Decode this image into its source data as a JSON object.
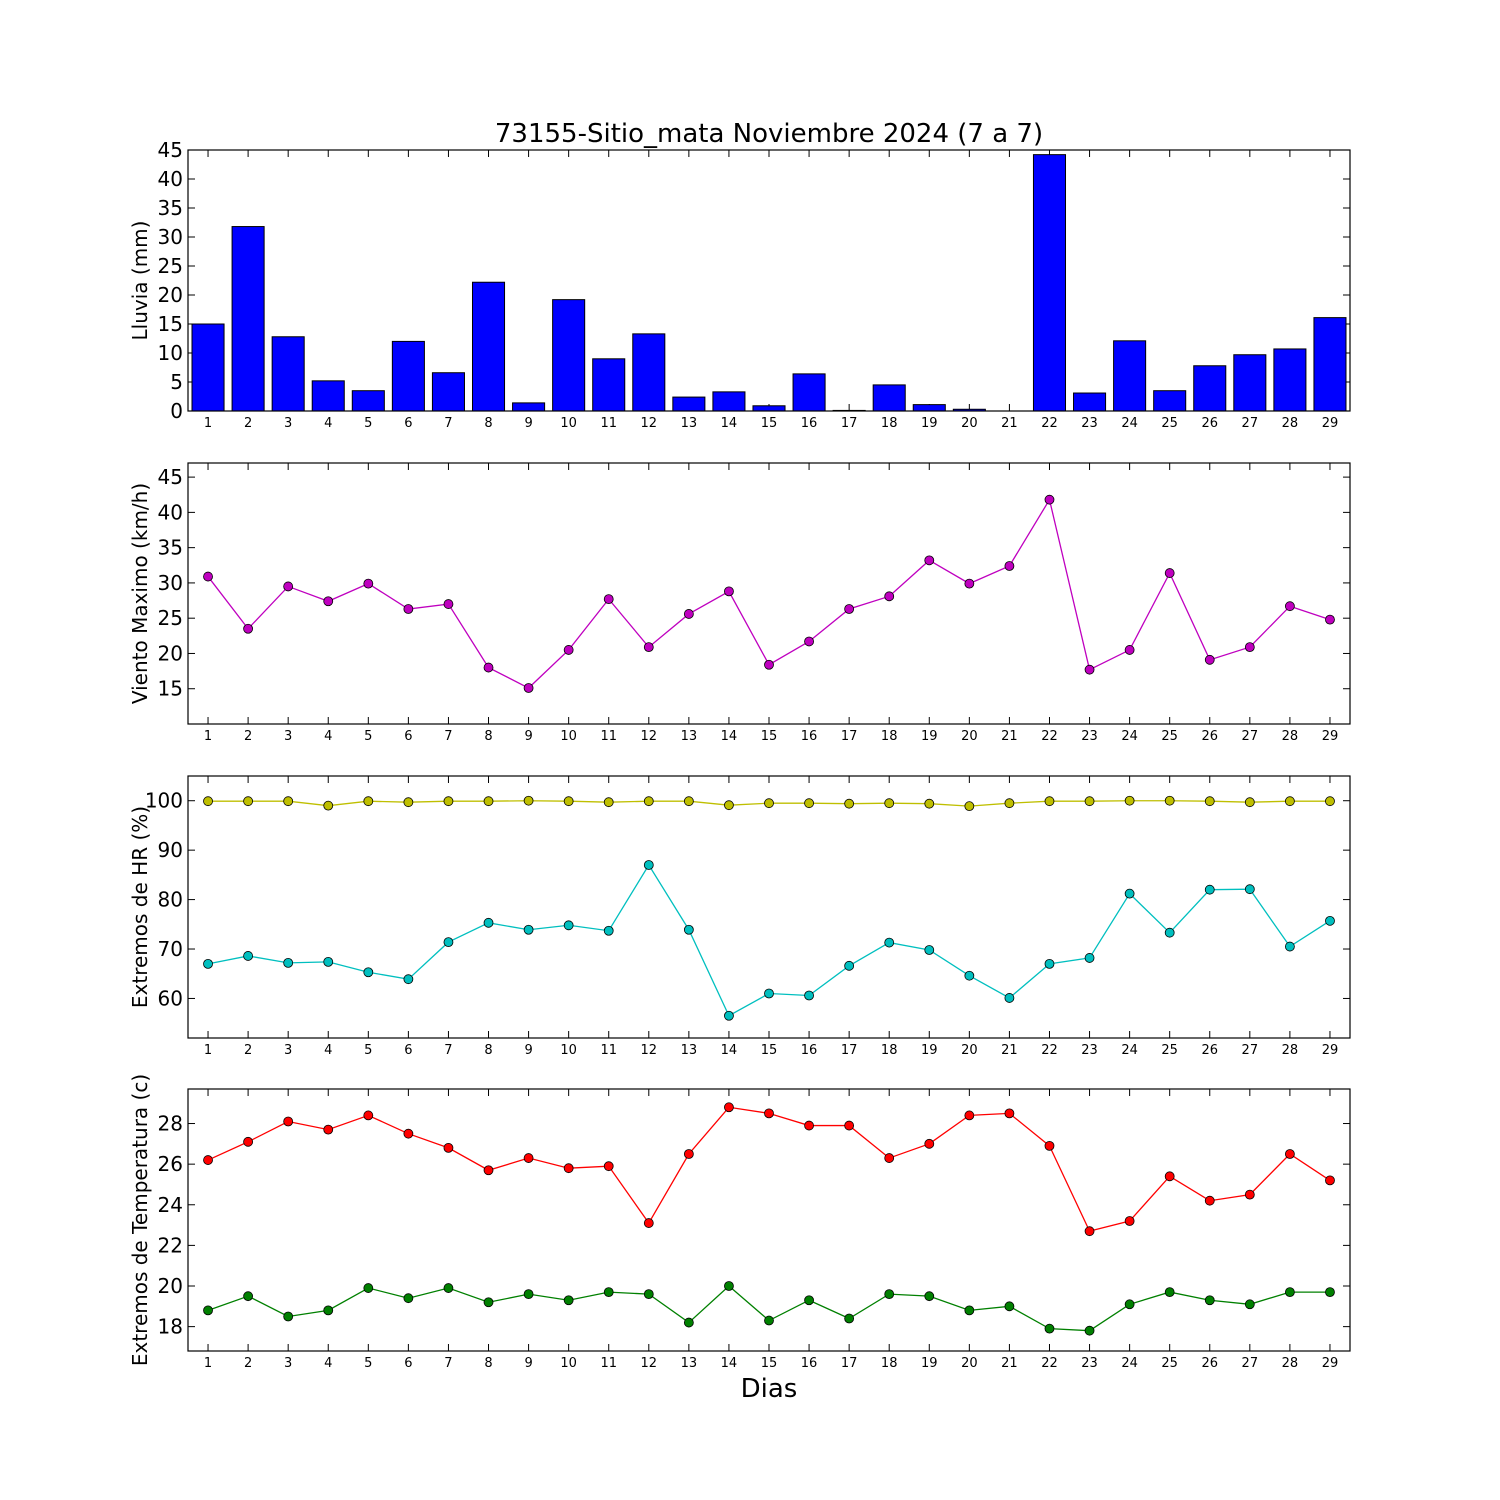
{
  "title": "73155-Sitio_mata Noviembre 2024  (7 a 7)",
  "xlabel": "Dias",
  "colors": {
    "rain": "#0000ff",
    "wind": "#bf00bf",
    "hr_max": "#bfbf00",
    "hr_min": "#00bfbf",
    "temp_max": "#ff0000",
    "temp_min": "#008000"
  },
  "chart_data": [
    {
      "type": "bar",
      "ylabel": "Lluvia (mm)",
      "categories": [
        "1",
        "2",
        "3",
        "4",
        "5",
        "6",
        "7",
        "8",
        "9",
        "10",
        "11",
        "12",
        "13",
        "14",
        "15",
        "16",
        "17",
        "18",
        "19",
        "20",
        "21",
        "22",
        "23",
        "24",
        "25",
        "26",
        "27",
        "28",
        "29"
      ],
      "ylim": [
        0,
        45
      ],
      "yticks": [
        0,
        5,
        10,
        15,
        20,
        25,
        30,
        35,
        40,
        45
      ],
      "series": [
        {
          "color": "#0000ff",
          "values": [
            15.0,
            31.8,
            12.8,
            5.2,
            3.5,
            12.0,
            6.6,
            22.2,
            1.4,
            19.2,
            9.0,
            13.3,
            2.4,
            3.3,
            0.9,
            6.4,
            0.1,
            4.5,
            1.1,
            0.3,
            0.0,
            44.2,
            3.1,
            12.1,
            3.5,
            7.8,
            9.7,
            10.7,
            16.1
          ]
        }
      ]
    },
    {
      "type": "line",
      "ylabel": "Viento Maximo (km/h)",
      "categories": [
        "1",
        "2",
        "3",
        "4",
        "5",
        "6",
        "7",
        "8",
        "9",
        "10",
        "11",
        "12",
        "13",
        "14",
        "15",
        "16",
        "17",
        "18",
        "19",
        "20",
        "21",
        "22",
        "23",
        "24",
        "25",
        "26",
        "27",
        "28",
        "29"
      ],
      "ylim": [
        10,
        47
      ],
      "yticks": [
        15,
        20,
        25,
        30,
        35,
        40,
        45
      ],
      "series": [
        {
          "color": "#bf00bf",
          "values": [
            30.9,
            23.5,
            29.5,
            27.4,
            29.9,
            26.3,
            27.0,
            18.0,
            15.1,
            20.5,
            27.7,
            20.9,
            25.6,
            28.8,
            18.4,
            21.7,
            26.3,
            28.1,
            33.2,
            29.9,
            32.4,
            41.8,
            17.7,
            20.5,
            31.4,
            19.1,
            20.9,
            26.7,
            24.8
          ]
        }
      ]
    },
    {
      "type": "line",
      "ylabel": "Extremos de HR (%)",
      "categories": [
        "1",
        "2",
        "3",
        "4",
        "5",
        "6",
        "7",
        "8",
        "9",
        "10",
        "11",
        "12",
        "13",
        "14",
        "15",
        "16",
        "17",
        "18",
        "19",
        "20",
        "21",
        "22",
        "23",
        "24",
        "25",
        "26",
        "27",
        "28",
        "29"
      ],
      "ylim": [
        52,
        105
      ],
      "yticks": [
        60,
        70,
        80,
        90,
        100
      ],
      "series": [
        {
          "color": "#bfbf00",
          "values": [
            99.9,
            99.9,
            99.9,
            99.0,
            99.9,
            99.7,
            99.9,
            99.9,
            100.0,
            99.9,
            99.7,
            99.9,
            99.9,
            99.1,
            99.5,
            99.5,
            99.4,
            99.5,
            99.4,
            98.9,
            99.5,
            99.9,
            99.9,
            100.0,
            100.0,
            99.9,
            99.7,
            99.9,
            99.9
          ]
        },
        {
          "color": "#00bfbf",
          "values": [
            67.0,
            68.6,
            67.2,
            67.4,
            65.3,
            63.9,
            71.4,
            75.3,
            73.9,
            74.8,
            73.7,
            87.0,
            73.9,
            56.5,
            61.0,
            60.6,
            66.6,
            71.3,
            69.8,
            64.6,
            60.1,
            67.0,
            68.2,
            81.2,
            73.3,
            82.0,
            82.1,
            70.5,
            75.7
          ]
        }
      ]
    },
    {
      "type": "line",
      "ylabel": "Extremos de Temperatura (c)",
      "categories": [
        "1",
        "2",
        "3",
        "4",
        "5",
        "6",
        "7",
        "8",
        "9",
        "10",
        "11",
        "12",
        "13",
        "14",
        "15",
        "16",
        "17",
        "18",
        "19",
        "20",
        "21",
        "22",
        "23",
        "24",
        "25",
        "26",
        "27",
        "28",
        "29"
      ],
      "ylim": [
        16.8,
        29.7
      ],
      "yticks": [
        18,
        20,
        22,
        24,
        26,
        28
      ],
      "series": [
        {
          "color": "#ff0000",
          "values": [
            26.2,
            27.1,
            28.1,
            27.7,
            28.4,
            27.5,
            26.8,
            25.7,
            26.3,
            25.8,
            25.9,
            23.1,
            26.5,
            28.8,
            28.5,
            27.9,
            27.9,
            26.3,
            27.0,
            28.4,
            28.5,
            26.9,
            22.7,
            23.2,
            25.4,
            24.2,
            24.5,
            26.5,
            25.2
          ]
        },
        {
          "color": "#008000",
          "values": [
            18.8,
            19.5,
            18.5,
            18.8,
            19.9,
            19.4,
            19.9,
            19.2,
            19.6,
            19.3,
            19.7,
            19.6,
            18.2,
            20.0,
            18.3,
            19.3,
            18.4,
            19.6,
            19.5,
            18.8,
            19.0,
            17.9,
            17.8,
            19.1,
            19.7,
            19.3,
            19.1,
            19.7,
            19.7
          ]
        }
      ]
    }
  ]
}
